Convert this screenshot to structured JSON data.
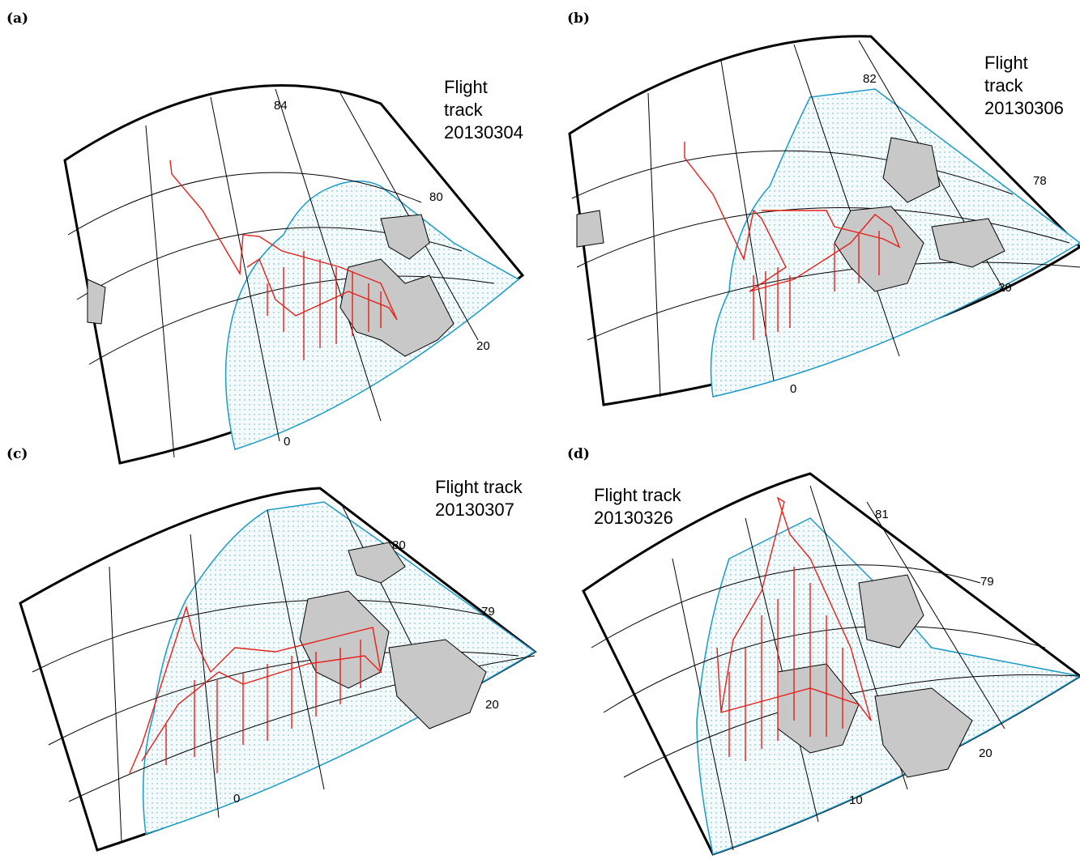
{
  "panels": [
    {
      "label": "(a)",
      "title": [
        "Flight",
        "track",
        "20130304"
      ],
      "grid_labels": [
        "84",
        "80",
        "20",
        "0"
      ]
    },
    {
      "label": "(b)",
      "title": [
        "Flight",
        "track",
        "20130306"
      ],
      "grid_labels": [
        "82",
        "78",
        "20",
        "0"
      ]
    },
    {
      "label": "(c)",
      "title": [
        "Flight track",
        "20130307"
      ],
      "grid_labels": [
        "80",
        "79",
        "20",
        "0"
      ]
    },
    {
      "label": "(d)",
      "title": [
        "Flight track",
        "20130326"
      ],
      "grid_labels": [
        "81",
        "79",
        "20",
        "10"
      ]
    }
  ]
}
